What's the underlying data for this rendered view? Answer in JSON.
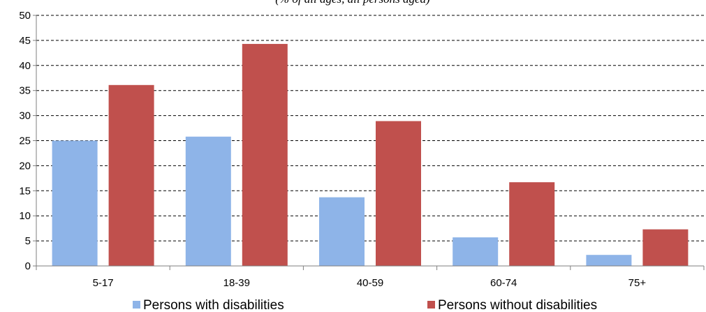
{
  "chart_data": {
    "type": "bar",
    "subtitle": "(% of all ages, all persons aged)",
    "categories": [
      "5-17",
      "18-39",
      "40-59",
      "60-74",
      "75+"
    ],
    "series": [
      {
        "name": "Persons with disabilities",
        "color": "#8eb4e8",
        "values": [
          25.0,
          25.8,
          13.7,
          5.7,
          2.2
        ]
      },
      {
        "name": "Persons without disabilities",
        "color": "#c0504d",
        "values": [
          36.1,
          44.3,
          28.9,
          16.7,
          7.3
        ]
      }
    ],
    "ylim": [
      0,
      50
    ],
    "yticks": [
      "0",
      "5",
      "10",
      "15",
      "20",
      "25",
      "30",
      "35",
      "40",
      "45",
      "50"
    ],
    "grid": true,
    "legend_position": "bottom"
  }
}
